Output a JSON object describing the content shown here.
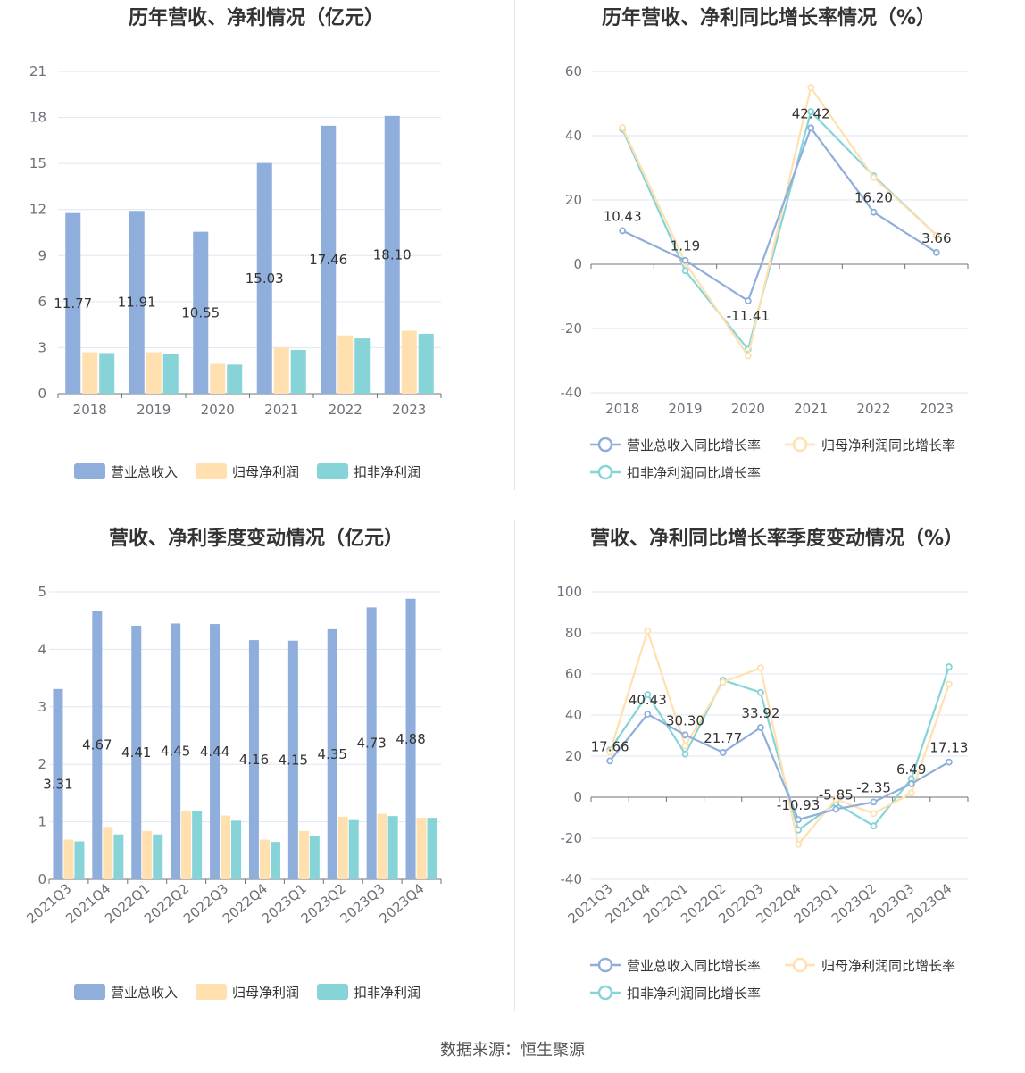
{
  "colors": {
    "revenue": "#8FAEDB",
    "parent": "#FFE0AE",
    "deducted": "#86D4D8"
  },
  "footer": "数据来源：恒生聚源",
  "legend": {
    "bar": [
      "营业总收入",
      "归母净利润",
      "扣非净利润"
    ],
    "line": [
      "营业总收入同比增长率",
      "归母净利润同比增长率",
      "扣非净利润同比增长率"
    ]
  },
  "chart_data": [
    {
      "type": "bar",
      "title": "历年营收、净利情况（亿元）",
      "categories": [
        "2018",
        "2019",
        "2020",
        "2021",
        "2022",
        "2023"
      ],
      "yticks": [
        "0",
        "3",
        "6",
        "9",
        "12",
        "15",
        "18",
        "21"
      ],
      "ylim": [
        0,
        21
      ],
      "series": [
        {
          "name": "营业总收入",
          "values": [
            11.77,
            11.91,
            10.55,
            15.03,
            17.46,
            18.1
          ],
          "labels": [
            "11.77",
            "11.91",
            "10.55",
            "15.03",
            "17.46",
            "18.10"
          ]
        },
        {
          "name": "归母净利润",
          "values": [
            2.7,
            2.7,
            1.95,
            3.0,
            3.8,
            4.1
          ]
        },
        {
          "name": "扣非净利润",
          "values": [
            2.65,
            2.6,
            1.9,
            2.85,
            3.6,
            3.9
          ]
        }
      ]
    },
    {
      "type": "line",
      "title": "历年营收、净利同比增长率情况（%）",
      "categories": [
        "2018",
        "2019",
        "2020",
        "2021",
        "2022",
        "2023"
      ],
      "yticks": [
        "-40",
        "-20",
        "0",
        "20",
        "40",
        "60"
      ],
      "ylim": [
        -40,
        60
      ],
      "series": [
        {
          "name": "营业总收入同比增长率",
          "values": [
            10.43,
            1.19,
            -11.41,
            42.42,
            16.2,
            3.66
          ],
          "labels": [
            "10.43",
            "1.19",
            "-11.41",
            "42.42",
            "16.20",
            "3.66"
          ]
        },
        {
          "name": "归母净利润同比增长率",
          "values": [
            42.5,
            0.5,
            -28.5,
            55.0,
            27.0,
            9.0
          ]
        },
        {
          "name": "扣非净利润同比增长率",
          "values": [
            42.0,
            -2.0,
            -26.5,
            47.5,
            27.5,
            9.0
          ]
        }
      ]
    },
    {
      "type": "bar",
      "title": "营收、净利季度变动情况（亿元）",
      "categories": [
        "2021Q3",
        "2021Q4",
        "2022Q1",
        "2022Q2",
        "2022Q3",
        "2022Q4",
        "2023Q1",
        "2023Q2",
        "2023Q3",
        "2023Q4"
      ],
      "yticks": [
        "0",
        "1",
        "2",
        "3",
        "4",
        "5"
      ],
      "ylim": [
        0,
        5
      ],
      "series": [
        {
          "name": "营业总收入",
          "values": [
            3.31,
            4.67,
            4.41,
            4.45,
            4.44,
            4.16,
            4.15,
            4.35,
            4.73,
            4.88
          ],
          "labels": [
            "3.31",
            "4.67",
            "4.41",
            "4.45",
            "4.44",
            "4.16",
            "4.15",
            "4.35",
            "4.73",
            "4.88"
          ]
        },
        {
          "name": "归母净利润",
          "values": [
            0.69,
            0.91,
            0.84,
            1.18,
            1.11,
            0.69,
            0.84,
            1.09,
            1.14,
            1.07
          ]
        },
        {
          "name": "扣非净利润",
          "values": [
            0.66,
            0.78,
            0.78,
            1.19,
            1.02,
            0.65,
            0.75,
            1.03,
            1.1,
            1.07
          ]
        }
      ]
    },
    {
      "type": "line",
      "title": "营收、净利同比增长率季度变动情况（%）",
      "categories": [
        "2021Q3",
        "2021Q4",
        "2022Q1",
        "2022Q2",
        "2022Q3",
        "2022Q4",
        "2023Q1",
        "2023Q2",
        "2023Q3",
        "2023Q4"
      ],
      "yticks": [
        "-40",
        "-20",
        "0",
        "20",
        "40",
        "60",
        "80",
        "100"
      ],
      "ylim": [
        -40,
        100
      ],
      "series": [
        {
          "name": "营业总收入同比增长率",
          "values": [
            17.66,
            40.43,
            30.3,
            21.77,
            33.92,
            -10.93,
            -5.85,
            -2.35,
            6.49,
            17.13
          ],
          "labels": [
            "17.66",
            "40.43",
            "30.30",
            "21.77",
            "33.92",
            "-10.93",
            "-5.85",
            "-2.35",
            "6.49",
            "17.13"
          ]
        },
        {
          "name": "归母净利润同比增长率",
          "values": [
            22.0,
            81.0,
            25.0,
            56.0,
            63.0,
            -23.0,
            -1.0,
            -8.0,
            2.0,
            55.0
          ]
        },
        {
          "name": "扣非净利润同比增长率",
          "values": [
            23.0,
            50.0,
            21.0,
            57.0,
            51.0,
            -16.0,
            -3.0,
            -14.0,
            9.0,
            63.5
          ]
        }
      ]
    }
  ]
}
